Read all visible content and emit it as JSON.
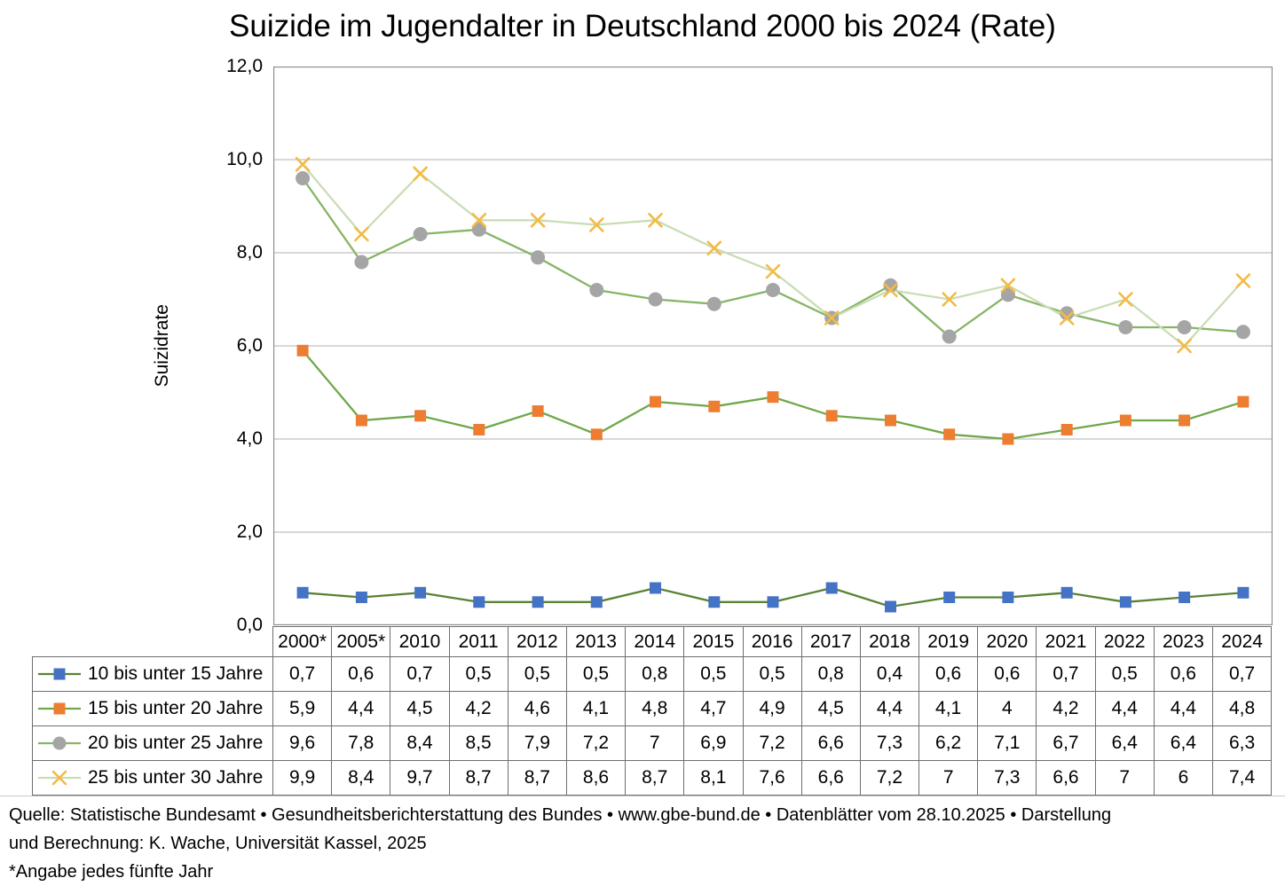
{
  "title": "Suizide im Jugendalter in Deutschland 2000 bis 2024 (Rate)",
  "chart_data": {
    "type": "line",
    "title": "Suizide im Jugendalter in Deutschland 2000 bis 2024 (Rate)",
    "ylabel": "Suizidrate",
    "xlabel": "",
    "ylim": [
      0,
      12
    ],
    "ytick_step": 2,
    "ytick_labels": [
      "0,0",
      "2,0",
      "4,0",
      "6,0",
      "8,0",
      "10,0",
      "12,0"
    ],
    "grid": "horizontal",
    "legend_position": "table-left",
    "decimal_separator": ",",
    "categories": [
      "2000*",
      "2005*",
      "2010",
      "2011",
      "2012",
      "2013",
      "2014",
      "2015",
      "2016",
      "2017",
      "2018",
      "2019",
      "2020",
      "2021",
      "2022",
      "2023",
      "2024"
    ],
    "series": [
      {
        "name": "10 bis unter 15 Jahre",
        "marker": "square",
        "marker_color": "#4472C4",
        "line_color": "#5A8235",
        "values": [
          0.7,
          0.6,
          0.7,
          0.5,
          0.5,
          0.5,
          0.8,
          0.5,
          0.5,
          0.8,
          0.4,
          0.6,
          0.6,
          0.7,
          0.5,
          0.6,
          0.7
        ]
      },
      {
        "name": "15 bis unter 20 Jahre",
        "marker": "square",
        "marker_color": "#ED7D31",
        "line_color": "#6FA84A",
        "values": [
          5.9,
          4.4,
          4.5,
          4.2,
          4.6,
          4.1,
          4.8,
          4.7,
          4.9,
          4.5,
          4.4,
          4.1,
          4,
          4.2,
          4.4,
          4.4,
          4.8
        ]
      },
      {
        "name": "20 bis unter 25 Jahre",
        "marker": "circle",
        "marker_color": "#A5A5A5",
        "line_color": "#86B565",
        "values": [
          9.6,
          7.8,
          8.4,
          8.5,
          7.9,
          7.2,
          7,
          6.9,
          7.2,
          6.6,
          7.3,
          6.2,
          7.1,
          6.7,
          6.4,
          6.4,
          6.3
        ]
      },
      {
        "name": "25 bis unter 30 Jahre",
        "marker": "x",
        "marker_color": "#F2BB43",
        "line_color": "#C9DDB5",
        "values": [
          9.9,
          8.4,
          9.7,
          8.7,
          8.7,
          8.6,
          8.7,
          8.1,
          7.6,
          6.6,
          7.2,
          7,
          7.3,
          6.6,
          7,
          6,
          7.4
        ]
      }
    ],
    "colors": {
      "gridline": "#C0C0C0",
      "plot_border": "#8C8C8C",
      "table_border": "#6F6F6F"
    }
  },
  "footer": {
    "line1": "Quelle: Statistische Bundesamt • Gesundheitsberichterstattung des Bundes • www.gbe-bund.de • Datenblätter vom 28.10.2025 • Darstellung",
    "line2": "und Berechnung: K. Wache, Universität Kassel, 2025",
    "footnote": "*Angabe jedes fünfte Jahr"
  }
}
